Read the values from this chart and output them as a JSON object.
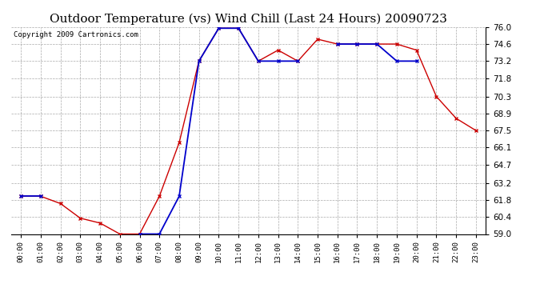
{
  "title": "Outdoor Temperature (vs) Wind Chill (Last 24 Hours) 20090723",
  "copyright": "Copyright 2009 Cartronics.com",
  "x_labels": [
    "00:00",
    "01:00",
    "02:00",
    "03:00",
    "04:00",
    "05:00",
    "06:00",
    "07:00",
    "08:00",
    "09:00",
    "10:00",
    "11:00",
    "12:00",
    "13:00",
    "14:00",
    "15:00",
    "16:00",
    "17:00",
    "18:00",
    "19:00",
    "20:00",
    "21:00",
    "22:00",
    "23:00"
  ],
  "temp": [
    62.1,
    62.1,
    61.5,
    60.3,
    59.9,
    59.0,
    59.0,
    62.1,
    66.5,
    73.2,
    75.9,
    75.9,
    73.2,
    74.1,
    73.2,
    75.0,
    74.6,
    74.6,
    74.6,
    74.6,
    74.1,
    70.3,
    68.5,
    67.5
  ],
  "windchill": [
    62.1,
    62.1,
    null,
    null,
    null,
    null,
    59.0,
    59.0,
    62.1,
    73.2,
    75.9,
    75.9,
    73.2,
    73.2,
    73.2,
    null,
    74.6,
    74.6,
    74.6,
    73.2,
    73.2,
    null,
    null,
    null
  ],
  "temp_color": "#cc0000",
  "windchill_color": "#0000cc",
  "ylim_min": 59.0,
  "ylim_max": 76.0,
  "yticks": [
    59.0,
    60.4,
    61.8,
    63.2,
    64.7,
    66.1,
    67.5,
    68.9,
    70.3,
    71.8,
    73.2,
    74.6,
    76.0
  ],
  "background_color": "#ffffff",
  "plot_bg_color": "#ffffff",
  "grid_color": "#aaaaaa",
  "title_fontsize": 11,
  "copyright_fontsize": 6.5,
  "marker_size": 3.5,
  "linewidth": 1.0
}
